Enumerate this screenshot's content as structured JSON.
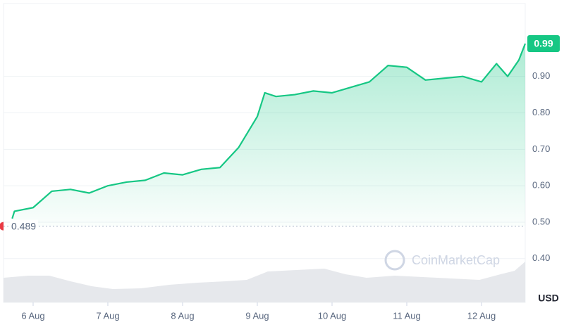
{
  "chart_data": {
    "type": "line",
    "watermark": "CoinMarketCap",
    "y_axis_label": "USD",
    "x": [
      5.72,
      5.75,
      6.0,
      6.25,
      6.5,
      6.75,
      7.0,
      7.25,
      7.5,
      7.75,
      8.0,
      8.25,
      8.5,
      8.75,
      9.0,
      9.1,
      9.25,
      9.5,
      9.75,
      10.0,
      10.25,
      10.5,
      10.75,
      11.0,
      11.25,
      11.5,
      11.75,
      12.0,
      12.2,
      12.35,
      12.5,
      12.585
    ],
    "series": [
      {
        "color": "#16c784",
        "values": [
          0.51,
          0.53,
          0.54,
          0.585,
          0.59,
          0.58,
          0.6,
          0.61,
          0.615,
          0.635,
          0.63,
          0.645,
          0.65,
          0.705,
          0.79,
          0.855,
          0.845,
          0.85,
          0.86,
          0.855,
          0.87,
          0.885,
          0.93,
          0.925,
          0.89,
          0.895,
          0.9,
          0.885,
          0.935,
          0.9,
          0.945,
          0.99
        ],
        "value_labels": [
          null,
          null,
          null,
          null,
          null,
          null,
          null,
          null,
          null,
          null,
          null,
          null,
          null,
          null,
          null,
          null,
          null,
          null,
          null,
          null,
          null,
          null,
          null,
          null,
          null,
          null,
          null,
          null,
          null,
          null,
          null,
          "0.99"
        ]
      }
    ],
    "reference_line": 0.489,
    "xlim": [
      5.604,
      12.585
    ],
    "xticks": [
      {
        "value": 6,
        "label": "6 Aug"
      },
      {
        "value": 7,
        "label": "7 Aug"
      },
      {
        "value": 8,
        "label": "8 Aug"
      },
      {
        "value": 9,
        "label": "9 Aug"
      },
      {
        "value": 10,
        "label": "10 Aug"
      },
      {
        "value": 11,
        "label": "11 Aug"
      },
      {
        "value": 12,
        "label": "12 Aug"
      }
    ],
    "ylim": [
      0.28,
      1.1
    ],
    "yticks": [
      {
        "value": 0.4,
        "label": "0.40"
      },
      {
        "value": 0.5,
        "label": "0.50"
      },
      {
        "value": 0.6,
        "label": "0.60"
      },
      {
        "value": 0.7,
        "label": "0.70"
      },
      {
        "value": 0.8,
        "label": "0.80"
      },
      {
        "value": 0.9,
        "label": "0.90"
      }
    ],
    "grid": true
  }
}
